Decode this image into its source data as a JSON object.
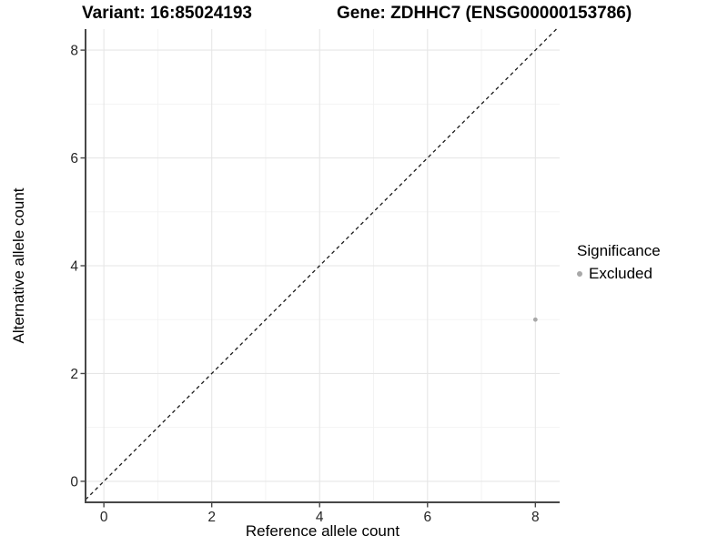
{
  "titles": {
    "variant": "Variant: 16:85024193",
    "gene": "Gene: ZDHHC7 (ENSG00000153786)"
  },
  "axes": {
    "x_label": "Reference allele count",
    "y_label": "Alternative allele count"
  },
  "legend": {
    "title": "Significance",
    "items": [
      {
        "label": "Excluded",
        "color": "#a8a8a8"
      }
    ]
  },
  "colors": {
    "background": "#ffffff",
    "grid_major": "#e6e6e6",
    "grid_minor": "#f2f2f2",
    "axis_line": "#474747",
    "tick_mark": "#474747",
    "tick_label": "#262626",
    "identity_line": "#1a1a1a",
    "point": "#a8a8a8"
  },
  "chart_data": {
    "type": "scatter",
    "title": "Variant: 16:85024193 — Gene: ZDHHC7 (ENSG00000153786)",
    "xlabel": "Reference allele count",
    "ylabel": "Alternative allele count",
    "xlim": [
      -0.34,
      8.45
    ],
    "ylim": [
      -0.39,
      8.39
    ],
    "x_ticks": [
      0,
      2,
      4,
      6,
      8
    ],
    "y_ticks": [
      0,
      2,
      4,
      6,
      8
    ],
    "x_minor_ticks": [
      1,
      3,
      5,
      7
    ],
    "y_minor_ticks": [
      1,
      3,
      5,
      7
    ],
    "grid": true,
    "legend_position": "right",
    "reference_line": {
      "type": "identity",
      "slope": 1,
      "intercept": 0,
      "style": "dashed"
    },
    "series": [
      {
        "name": "Excluded",
        "color": "#a8a8a8",
        "points": [
          {
            "x": 8,
            "y": 3
          }
        ]
      }
    ]
  }
}
